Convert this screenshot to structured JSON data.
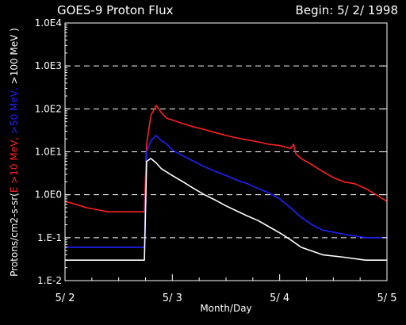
{
  "chart_data": {
    "type": "line",
    "title": "GOES-9 Proton Flux",
    "subtitle": "Begin: 5/ 2/ 1998",
    "xlabel": "Month/Day",
    "ylabel_parts": [
      {
        "text": "Protons/cm2-s-sr(",
        "color": "#ffffff"
      },
      {
        "text": "E >10 MeV,",
        "color": "#ff2020"
      },
      {
        "text": " >50 MeV,",
        "color": "#2020ff"
      },
      {
        "text": " >100 MeV )",
        "color": "#ffffff"
      }
    ],
    "y_scale": "log",
    "ylim": [
      0.01,
      10000
    ],
    "y_ticks": [
      {
        "value": 10000,
        "label": "1.0E4"
      },
      {
        "value": 1000,
        "label": "1.0E3"
      },
      {
        "value": 100,
        "label": "1.0E2"
      },
      {
        "value": 10,
        "label": "1.0E1"
      },
      {
        "value": 1,
        "label": "1.0E0"
      },
      {
        "value": 0.1,
        "label": "1.E-1"
      },
      {
        "value": 0.01,
        "label": "1.E-2"
      }
    ],
    "grid_lines": [
      1000,
      100,
      10,
      1,
      0.1
    ],
    "xlim": [
      0,
      3
    ],
    "x_ticks": [
      {
        "value": 0,
        "label": "5/ 2"
      },
      {
        "value": 1,
        "label": "5/ 3"
      },
      {
        "value": 2,
        "label": "5/ 4"
      },
      {
        "value": 3,
        "label": "5/ 5"
      }
    ],
    "series": [
      {
        "color": "#ff2020",
        "x": [
          0,
          0.1,
          0.2,
          0.3,
          0.4,
          0.5,
          0.6,
          0.74,
          0.76,
          0.8,
          0.85,
          0.9,
          0.95,
          1.0,
          1.1,
          1.2,
          1.3,
          1.4,
          1.5,
          1.6,
          1.7,
          1.8,
          1.9,
          2.0,
          2.05,
          2.1,
          2.13,
          2.15,
          2.2,
          2.3,
          2.4,
          2.5,
          2.6,
          2.7,
          2.8,
          2.9,
          3.0
        ],
        "y": [
          0.7,
          0.6,
          0.5,
          0.45,
          0.4,
          0.4,
          0.4,
          0.4,
          15,
          70,
          120,
          80,
          60,
          55,
          45,
          38,
          33,
          28,
          24,
          21,
          19,
          17,
          15,
          14,
          13,
          12,
          15,
          9,
          7,
          5,
          3.5,
          2.5,
          2,
          1.8,
          1.4,
          1.0,
          0.7
        ]
      },
      {
        "color": "#2020ff",
        "x": [
          0,
          0.2,
          0.4,
          0.6,
          0.74,
          0.76,
          0.8,
          0.85,
          0.9,
          0.95,
          1.0,
          1.1,
          1.2,
          1.3,
          1.4,
          1.5,
          1.6,
          1.7,
          1.8,
          1.9,
          2.0,
          2.1,
          2.2,
          2.3,
          2.4,
          2.6,
          2.8,
          3.0
        ],
        "y": [
          0.06,
          0.06,
          0.06,
          0.06,
          0.06,
          10,
          18,
          24,
          18,
          15,
          11,
          8,
          6,
          4.5,
          3.5,
          2.8,
          2.2,
          1.8,
          1.4,
          1.1,
          0.8,
          0.5,
          0.3,
          0.2,
          0.15,
          0.12,
          0.1,
          0.1
        ]
      },
      {
        "color": "#ffffff",
        "x": [
          0,
          0.2,
          0.4,
          0.6,
          0.74,
          0.76,
          0.8,
          0.85,
          0.9,
          1.0,
          1.1,
          1.2,
          1.3,
          1.4,
          1.5,
          1.6,
          1.7,
          1.8,
          1.9,
          2.0,
          2.1,
          2.2,
          2.4,
          2.6,
          2.8,
          3.0
        ],
        "y": [
          0.03,
          0.03,
          0.03,
          0.03,
          0.03,
          6,
          7,
          5.5,
          4,
          2.8,
          2,
          1.4,
          1.0,
          0.75,
          0.55,
          0.42,
          0.32,
          0.25,
          0.18,
          0.13,
          0.09,
          0.06,
          0.04,
          0.035,
          0.03,
          0.03
        ]
      }
    ]
  }
}
